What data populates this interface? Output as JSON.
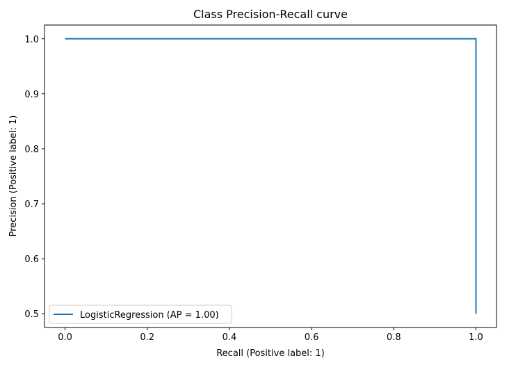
{
  "chart_data": {
    "type": "line",
    "title": "Class Precision-Recall curve",
    "xlabel": "Recall (Positive label: 1)",
    "ylabel": "Precision (Positive label: 1)",
    "xlim": [
      -0.05,
      1.05
    ],
    "ylim": [
      0.475,
      1.025
    ],
    "xticks": [
      0.0,
      0.2,
      0.4,
      0.6,
      0.8,
      1.0
    ],
    "xtick_labels": [
      "0.0",
      "0.2",
      "0.4",
      "0.6",
      "0.8",
      "1.0"
    ],
    "yticks": [
      0.5,
      0.6,
      0.7,
      0.8,
      0.9,
      1.0
    ],
    "ytick_labels": [
      "0.5",
      "0.6",
      "0.7",
      "0.8",
      "0.9",
      "1.0"
    ],
    "grid": false,
    "legend_position": "lower-left",
    "series": [
      {
        "name": "LogisticRegression (AP = 1.00)",
        "color": "#1f77b4",
        "drawstyle": "steps-post",
        "x": [
          0.0,
          1.0,
          1.0
        ],
        "y": [
          1.0,
          1.0,
          0.5
        ]
      }
    ]
  }
}
